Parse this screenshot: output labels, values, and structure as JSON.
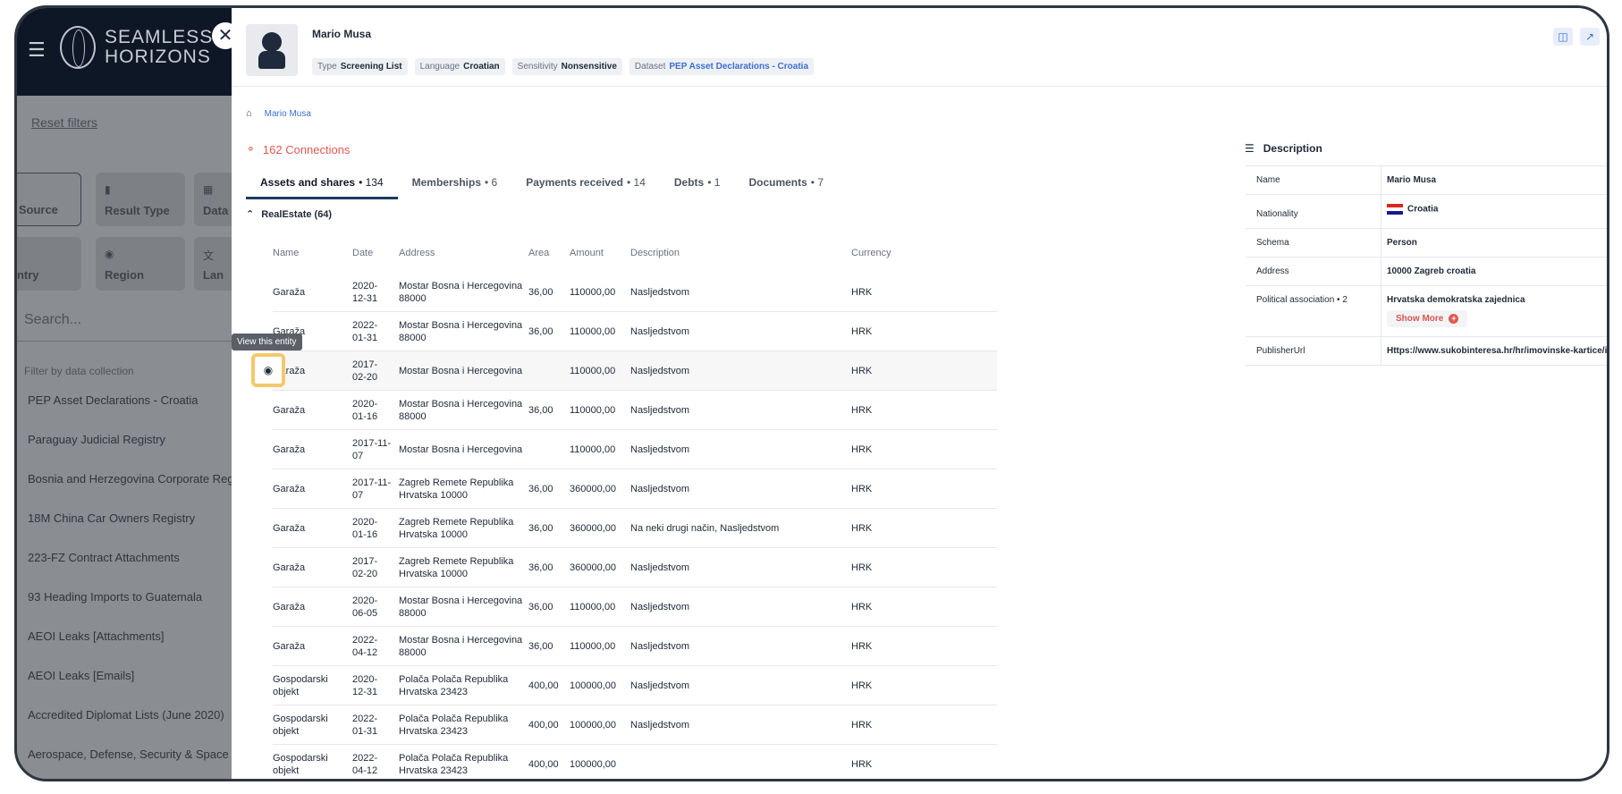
{
  "background": {
    "logo_line1": "SEAMLESS",
    "logo_line2": "HORIZONS",
    "reset_filters": "Reset filters",
    "tiles": [
      "a Source",
      "Result Type",
      "Data",
      "untry",
      "Region",
      "Lan"
    ],
    "search_placeholder": "Search...",
    "filter_label": "Filter by data collection",
    "collections": [
      "PEP Asset Declarations - Croatia",
      "Paraguay Judicial Registry",
      "Bosnia and Herzegovina Corporate Regi",
      "18M China Car Owners Registry",
      "223-FZ Contract Attachments",
      "93 Heading Imports to Guatemala",
      "AEOI Leaks [Attachments]",
      "AEOI Leaks [Emails]",
      "Accredited Diplomat Lists (June 2020)",
      "Aerospace, Defense, Security & Space A"
    ]
  },
  "entity": {
    "name": "Mario Musa",
    "chips": [
      {
        "label": "Type",
        "value": "Screening List",
        "link": false
      },
      {
        "label": "Language",
        "value": "Croatian",
        "link": false
      },
      {
        "label": "Sensitivity",
        "value": "Nonsensitive",
        "link": false
      },
      {
        "label": "Dataset",
        "value": "PEP Asset Declarations - Croatia",
        "link": true
      }
    ]
  },
  "breadcrumb": "Mario Musa",
  "connections": "162 Connections",
  "tabs": [
    {
      "label": "Assets and shares",
      "count": "134"
    },
    {
      "label": "Memberships",
      "count": "6"
    },
    {
      "label": "Payments received",
      "count": "14"
    },
    {
      "label": "Debts",
      "count": "1"
    },
    {
      "label": "Documents",
      "count": "7"
    }
  ],
  "section_title": "RealEstate (64)",
  "columns": [
    "Name",
    "Date",
    "Address",
    "Area",
    "Amount",
    "Description",
    "Currency"
  ],
  "rows": [
    {
      "name": "Garaža",
      "date": "2020-\n12-31",
      "address": "Mostar Bosna i Hercegovina\n88000",
      "area": "36,00",
      "amount": "110000,00",
      "desc": "Nasljedstvom",
      "currency": "HRK"
    },
    {
      "name": "Garaža",
      "date": "2022-\n01-31",
      "address": "Mostar Bosna i Hercegovina\n88000",
      "area": "36,00",
      "amount": "110000,00",
      "desc": "Nasljedstvom",
      "currency": "HRK"
    },
    {
      "name": "Garaža",
      "date": "2017-\n02-20",
      "address": "Mostar Bosna i Hercegovina",
      "area": "",
      "amount": "110000,00",
      "desc": "Nasljedstvom",
      "currency": "HRK"
    },
    {
      "name": "Garaža",
      "date": "2020-\n01-16",
      "address": "Mostar Bosna i Hercegovina\n88000",
      "area": "36,00",
      "amount": "110000,00",
      "desc": "Nasljedstvom",
      "currency": "HRK"
    },
    {
      "name": "Garaža",
      "date": "2017-11-\n07",
      "address": "Mostar Bosna i Hercegovina",
      "area": "",
      "amount": "110000,00",
      "desc": "Nasljedstvom",
      "currency": "HRK"
    },
    {
      "name": "Garaža",
      "date": "2017-11-\n07",
      "address": "Zagreb Remete Republika\nHrvatska 10000",
      "area": "36,00",
      "amount": "360000,00",
      "desc": "Nasljedstvom",
      "currency": "HRK"
    },
    {
      "name": "Garaža",
      "date": "2020-\n01-16",
      "address": "Zagreb Remete Republika\nHrvatska 10000",
      "area": "36,00",
      "amount": "360000,00",
      "desc": "Na neki drugi način, Nasljedstvom",
      "currency": "HRK"
    },
    {
      "name": "Garaža",
      "date": "2017-\n02-20",
      "address": "Zagreb Remete Republika\nHrvatska 10000",
      "area": "36,00",
      "amount": "360000,00",
      "desc": "Nasljedstvom",
      "currency": "HRK"
    },
    {
      "name": "Garaža",
      "date": "2020-\n06-05",
      "address": "Mostar Bosna i Hercegovina\n88000",
      "area": "36,00",
      "amount": "110000,00",
      "desc": "Nasljedstvom",
      "currency": "HRK"
    },
    {
      "name": "Garaža",
      "date": "2022-\n04-12",
      "address": "Mostar Bosna i Hercegovina\n88000",
      "area": "36,00",
      "amount": "110000,00",
      "desc": "Nasljedstvom",
      "currency": "HRK"
    },
    {
      "name": "Gospodarski\nobjekt",
      "date": "2020-\n12-31",
      "address": "Polača Polača Republika\nHrvatska 23423",
      "area": "400,00",
      "amount": "100000,00",
      "desc": "Nasljedstvom",
      "currency": "HRK"
    },
    {
      "name": "Gospodarski\nobjekt",
      "date": "2022-\n01-31",
      "address": "Polača Polača Republika\nHrvatska 23423",
      "area": "400,00",
      "amount": "100000,00",
      "desc": "Nasljedstvom",
      "currency": "HRK"
    },
    {
      "name": "Gospodarski\nobjekt",
      "date": "2022-\n04-12",
      "address": "Polača Polača Republika\nHrvatska 23423",
      "area": "400,00",
      "amount": "100000,00",
      "desc": "",
      "currency": "HRK"
    }
  ],
  "tooltip": "View this entity",
  "description": {
    "title": "Description",
    "name_label": "Name",
    "name_value": "Mario Musa",
    "nationality_label": "Nationality",
    "nationality_value": "Croatia",
    "schema_label": "Schema",
    "schema_value": "Person",
    "address_label": "Address",
    "address_value": "10000 Zagreb croatia",
    "political_label": "Political association • 2",
    "political_value": "Hrvatska demokratska zajednica",
    "show_more": "Show More",
    "publisher_label": "PublisherUrl",
    "publisher_value": "Https://www.sukobinteresa.hr/hr/imovinske-kartice/imovinsko-stanje-duznosnika-mario-musa"
  }
}
